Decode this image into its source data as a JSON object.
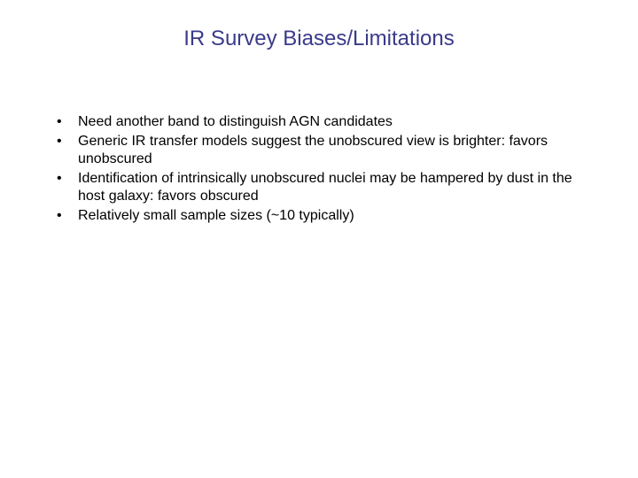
{
  "slide": {
    "title": "IR Survey Biases/Limitations",
    "title_color": "#3a3a8a",
    "title_fontsize": 24,
    "title_fontweight": "400",
    "bullet_color": "#000000",
    "bullet_fontsize": 16,
    "bullet_lineheight": 1.25,
    "background_color": "#ffffff",
    "bullets": [
      "Need another band to distinguish AGN candidates",
      "Generic IR transfer models suggest the unobscured view is brighter: favors unobscured",
      "Identification of intrinsically unobscured nuclei may be hampered by dust in the host galaxy: favors obscured",
      "Relatively small sample sizes (~10 typically)"
    ]
  }
}
